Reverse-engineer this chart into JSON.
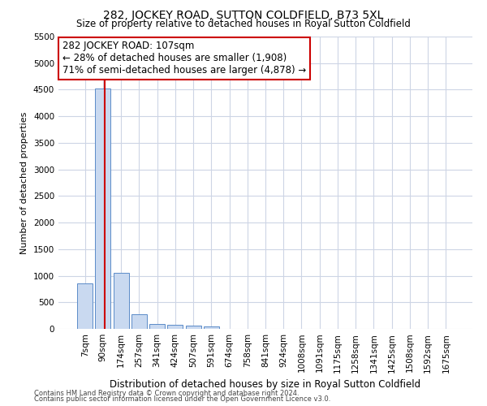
{
  "title": "282, JOCKEY ROAD, SUTTON COLDFIELD, B73 5XL",
  "subtitle": "Size of property relative to detached houses in Royal Sutton Coldfield",
  "xlabel": "Distribution of detached houses by size in Royal Sutton Coldfield",
  "ylabel": "Number of detached properties",
  "footnote1": "Contains HM Land Registry data © Crown copyright and database right 2024.",
  "footnote2": "Contains public sector information licensed under the Open Government Licence v3.0.",
  "bar_color": "#c9d9f0",
  "bar_edge_color": "#5b8cc8",
  "vline_color": "#cc0000",
  "vline_x_index": 1,
  "annotation_line1": "282 JOCKEY ROAD: 107sqm",
  "annotation_line2": "← 28% of detached houses are smaller (1,908)",
  "annotation_line3": "71% of semi-detached houses are larger (4,878) →",
  "categories": [
    "7sqm",
    "90sqm",
    "174sqm",
    "257sqm",
    "341sqm",
    "424sqm",
    "507sqm",
    "591sqm",
    "674sqm",
    "758sqm",
    "841sqm",
    "924sqm",
    "1008sqm",
    "1091sqm",
    "1175sqm",
    "1258sqm",
    "1341sqm",
    "1425sqm",
    "1508sqm",
    "1592sqm",
    "1675sqm"
  ],
  "values": [
    850,
    4520,
    1050,
    275,
    90,
    70,
    55,
    50,
    0,
    0,
    0,
    0,
    0,
    0,
    0,
    0,
    0,
    0,
    0,
    0,
    0
  ],
  "ylim": [
    0,
    5500
  ],
  "yticks": [
    0,
    500,
    1000,
    1500,
    2000,
    2500,
    3000,
    3500,
    4000,
    4500,
    5000,
    5500
  ],
  "background_color": "#ffffff",
  "grid_color": "#cdd5e5",
  "title_fontsize": 10,
  "subtitle_fontsize": 8.5,
  "xlabel_fontsize": 8.5,
  "ylabel_fontsize": 8,
  "tick_fontsize": 7.5,
  "annotation_fontsize": 8.5
}
